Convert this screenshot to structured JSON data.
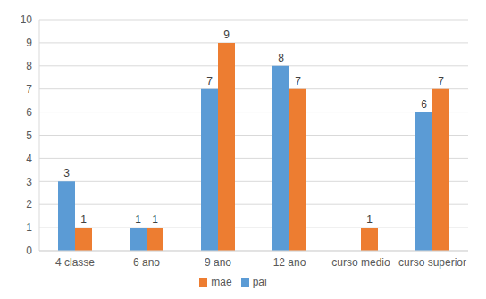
{
  "chart_data": {
    "type": "bar",
    "categories": [
      "4 classe",
      "6 ano",
      "9 ano",
      "12 ano",
      "curso medio",
      "curso superior"
    ],
    "series": [
      {
        "name": "pai",
        "color": "#5b9bd5",
        "values": [
          3,
          1,
          7,
          8,
          null,
          6
        ]
      },
      {
        "name": "mae",
        "color": "#ed7d31",
        "values": [
          1,
          1,
          9,
          7,
          1,
          7
        ]
      }
    ],
    "ylim": [
      0,
      10
    ],
    "yticks": [
      0,
      1,
      2,
      3,
      4,
      5,
      6,
      7,
      8,
      9,
      10
    ],
    "grid": true,
    "legend": "bottom",
    "data_labels": true
  }
}
